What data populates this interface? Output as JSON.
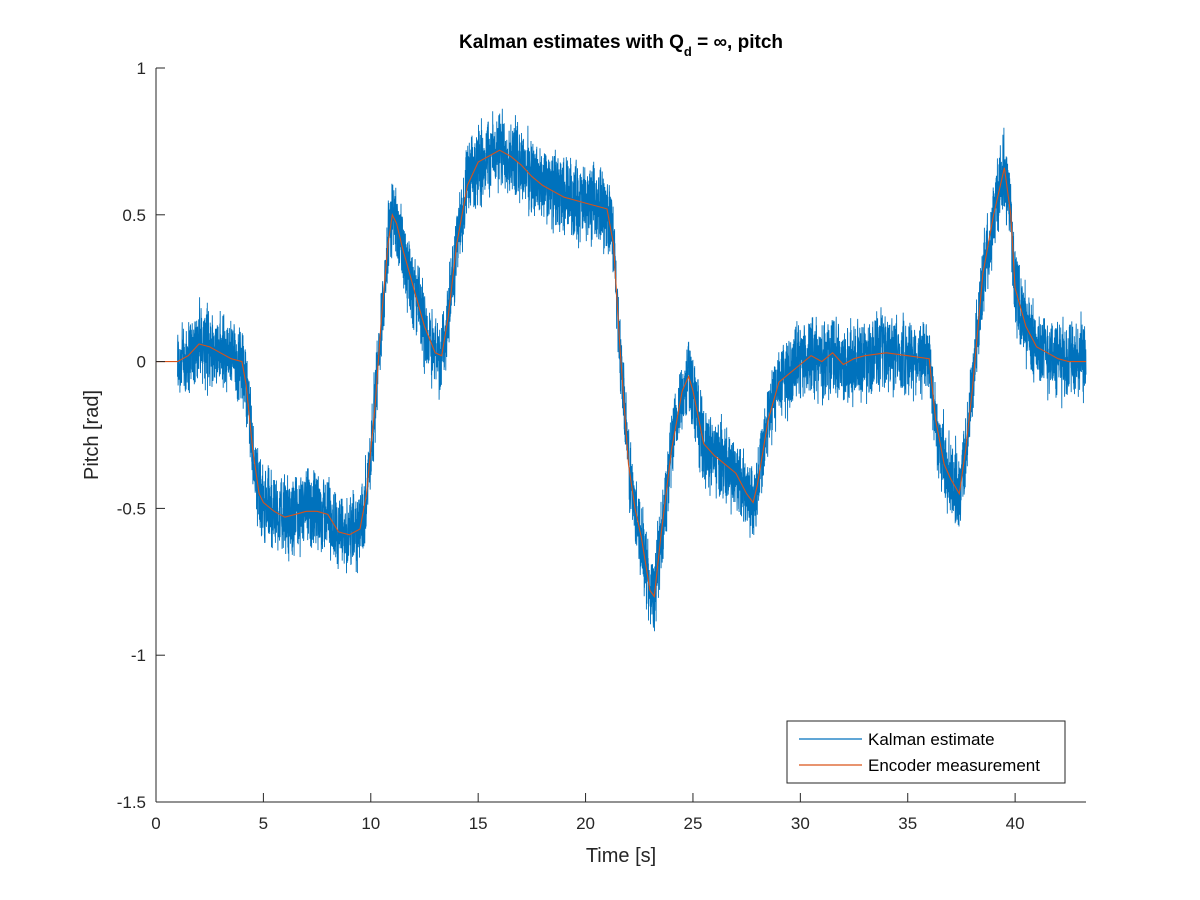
{
  "chart_data": {
    "type": "line",
    "title": {
      "prefix": "Kalman estimates with Q",
      "subscript": "d",
      "suffix": " = ∞, pitch"
    },
    "xlabel": "Time [s]",
    "ylabel": "Pitch [rad]",
    "xlim": [
      0,
      43.3
    ],
    "ylim": [
      -1.5,
      1
    ],
    "xticks": [
      0,
      5,
      10,
      15,
      20,
      25,
      30,
      35,
      40
    ],
    "xtick_labels": [
      "0",
      "5",
      "10",
      "15",
      "20",
      "25",
      "30",
      "35",
      "40"
    ],
    "yticks": [
      -1.5,
      -1,
      -0.5,
      0,
      0.5,
      1
    ],
    "ytick_labels": [
      "-1.5",
      "-1",
      "-0.5",
      "0",
      "0.5",
      "1"
    ],
    "grid": false,
    "legend_position": "bottom-right",
    "series": [
      {
        "name": "Kalman estimate",
        "color": "#0072BD",
        "noisy": true,
        "x_start": 1.0,
        "points": [
          [
            1.0,
            0.0
          ],
          [
            1.5,
            0.02
          ],
          [
            2.0,
            0.06
          ],
          [
            2.5,
            0.05
          ],
          [
            3.0,
            0.03
          ],
          [
            3.5,
            0.01
          ],
          [
            4.0,
            0.0
          ],
          [
            4.2,
            -0.08
          ],
          [
            4.5,
            -0.3
          ],
          [
            4.8,
            -0.45
          ],
          [
            5.0,
            -0.48
          ],
          [
            5.5,
            -0.51
          ],
          [
            6.0,
            -0.53
          ],
          [
            6.5,
            -0.52
          ],
          [
            7.0,
            -0.51
          ],
          [
            7.5,
            -0.51
          ],
          [
            8.0,
            -0.52
          ],
          [
            8.5,
            -0.58
          ],
          [
            9.0,
            -0.59
          ],
          [
            9.5,
            -0.57
          ],
          [
            9.8,
            -0.45
          ],
          [
            10.2,
            -0.15
          ],
          [
            10.5,
            0.15
          ],
          [
            10.8,
            0.4
          ],
          [
            11.0,
            0.5
          ],
          [
            11.2,
            0.47
          ],
          [
            11.5,
            0.38
          ],
          [
            12.0,
            0.25
          ],
          [
            12.5,
            0.12
          ],
          [
            13.0,
            0.03
          ],
          [
            13.3,
            0.02
          ],
          [
            13.6,
            0.15
          ],
          [
            14.0,
            0.4
          ],
          [
            14.5,
            0.6
          ],
          [
            15.0,
            0.68
          ],
          [
            15.5,
            0.7
          ],
          [
            16.0,
            0.72
          ],
          [
            16.5,
            0.7
          ],
          [
            17.0,
            0.67
          ],
          [
            17.5,
            0.63
          ],
          [
            18.0,
            0.6
          ],
          [
            18.5,
            0.58
          ],
          [
            19.0,
            0.56
          ],
          [
            19.5,
            0.55
          ],
          [
            20.0,
            0.54
          ],
          [
            20.5,
            0.53
          ],
          [
            21.0,
            0.52
          ],
          [
            21.3,
            0.4
          ],
          [
            21.6,
            0.05
          ],
          [
            22.0,
            -0.35
          ],
          [
            22.3,
            -0.5
          ],
          [
            22.6,
            -0.6
          ],
          [
            23.0,
            -0.78
          ],
          [
            23.2,
            -0.8
          ],
          [
            23.5,
            -0.6
          ],
          [
            24.0,
            -0.3
          ],
          [
            24.5,
            -0.1
          ],
          [
            24.8,
            -0.05
          ],
          [
            25.0,
            -0.1
          ],
          [
            25.5,
            -0.28
          ],
          [
            26.0,
            -0.32
          ],
          [
            26.5,
            -0.35
          ],
          [
            27.0,
            -0.38
          ],
          [
            27.5,
            -0.45
          ],
          [
            27.8,
            -0.48
          ],
          [
            28.0,
            -0.42
          ],
          [
            28.5,
            -0.2
          ],
          [
            29.0,
            -0.07
          ],
          [
            29.5,
            -0.04
          ],
          [
            30.0,
            -0.01
          ],
          [
            30.5,
            0.02
          ],
          [
            31.0,
            0.0
          ],
          [
            31.5,
            0.03
          ],
          [
            32.0,
            -0.01
          ],
          [
            32.5,
            0.01
          ],
          [
            33.0,
            0.02
          ],
          [
            34.0,
            0.03
          ],
          [
            35.0,
            0.02
          ],
          [
            36.0,
            0.01
          ],
          [
            36.3,
            -0.2
          ],
          [
            36.7,
            -0.35
          ],
          [
            37.0,
            -0.4
          ],
          [
            37.4,
            -0.45
          ],
          [
            37.7,
            -0.3
          ],
          [
            38.0,
            -0.1
          ],
          [
            38.5,
            0.3
          ],
          [
            39.0,
            0.5
          ],
          [
            39.5,
            0.66
          ],
          [
            39.8,
            0.5
          ],
          [
            40.0,
            0.25
          ],
          [
            40.5,
            0.12
          ],
          [
            41.0,
            0.05
          ],
          [
            41.5,
            0.03
          ],
          [
            42.0,
            0.01
          ],
          [
            42.5,
            0.0
          ],
          [
            43.3,
            0.0
          ]
        ]
      },
      {
        "name": "Encoder measurement",
        "color": "#D95319",
        "noisy": false,
        "points": [
          [
            0.0,
            0.0
          ],
          [
            1.0,
            0.0
          ],
          [
            1.5,
            0.02
          ],
          [
            2.0,
            0.06
          ],
          [
            2.5,
            0.05
          ],
          [
            3.0,
            0.03
          ],
          [
            3.5,
            0.01
          ],
          [
            4.0,
            0.0
          ],
          [
            4.2,
            -0.08
          ],
          [
            4.5,
            -0.3
          ],
          [
            4.8,
            -0.45
          ],
          [
            5.0,
            -0.48
          ],
          [
            5.5,
            -0.51
          ],
          [
            6.0,
            -0.53
          ],
          [
            6.5,
            -0.52
          ],
          [
            7.0,
            -0.51
          ],
          [
            7.5,
            -0.51
          ],
          [
            8.0,
            -0.52
          ],
          [
            8.5,
            -0.58
          ],
          [
            9.0,
            -0.59
          ],
          [
            9.5,
            -0.57
          ],
          [
            9.8,
            -0.45
          ],
          [
            10.2,
            -0.15
          ],
          [
            10.5,
            0.15
          ],
          [
            10.8,
            0.4
          ],
          [
            11.0,
            0.5
          ],
          [
            11.2,
            0.47
          ],
          [
            11.5,
            0.38
          ],
          [
            12.0,
            0.25
          ],
          [
            12.5,
            0.12
          ],
          [
            13.0,
            0.03
          ],
          [
            13.3,
            0.02
          ],
          [
            13.6,
            0.15
          ],
          [
            14.0,
            0.4
          ],
          [
            14.5,
            0.6
          ],
          [
            15.0,
            0.68
          ],
          [
            15.5,
            0.7
          ],
          [
            16.0,
            0.72
          ],
          [
            16.5,
            0.7
          ],
          [
            17.0,
            0.67
          ],
          [
            17.5,
            0.63
          ],
          [
            18.0,
            0.6
          ],
          [
            18.5,
            0.58
          ],
          [
            19.0,
            0.56
          ],
          [
            19.5,
            0.55
          ],
          [
            20.0,
            0.54
          ],
          [
            20.5,
            0.53
          ],
          [
            21.0,
            0.52
          ],
          [
            21.3,
            0.4
          ],
          [
            21.6,
            0.05
          ],
          [
            22.0,
            -0.35
          ],
          [
            22.3,
            -0.5
          ],
          [
            22.6,
            -0.6
          ],
          [
            23.0,
            -0.78
          ],
          [
            23.2,
            -0.8
          ],
          [
            23.5,
            -0.6
          ],
          [
            24.0,
            -0.3
          ],
          [
            24.5,
            -0.1
          ],
          [
            24.8,
            -0.05
          ],
          [
            25.0,
            -0.1
          ],
          [
            25.5,
            -0.28
          ],
          [
            26.0,
            -0.32
          ],
          [
            26.5,
            -0.35
          ],
          [
            27.0,
            -0.38
          ],
          [
            27.5,
            -0.45
          ],
          [
            27.8,
            -0.48
          ],
          [
            28.0,
            -0.42
          ],
          [
            28.5,
            -0.2
          ],
          [
            29.0,
            -0.07
          ],
          [
            29.5,
            -0.04
          ],
          [
            30.0,
            -0.01
          ],
          [
            30.5,
            0.02
          ],
          [
            31.0,
            0.0
          ],
          [
            31.5,
            0.03
          ],
          [
            32.0,
            -0.01
          ],
          [
            32.5,
            0.01
          ],
          [
            33.0,
            0.02
          ],
          [
            34.0,
            0.03
          ],
          [
            35.0,
            0.02
          ],
          [
            36.0,
            0.01
          ],
          [
            36.3,
            -0.2
          ],
          [
            36.7,
            -0.35
          ],
          [
            37.0,
            -0.4
          ],
          [
            37.4,
            -0.45
          ],
          [
            37.7,
            -0.3
          ],
          [
            38.0,
            -0.1
          ],
          [
            38.5,
            0.3
          ],
          [
            39.0,
            0.5
          ],
          [
            39.5,
            0.66
          ],
          [
            39.8,
            0.5
          ],
          [
            40.0,
            0.25
          ],
          [
            40.5,
            0.12
          ],
          [
            41.0,
            0.05
          ],
          [
            41.5,
            0.03
          ],
          [
            42.0,
            0.01
          ],
          [
            42.5,
            0.0
          ],
          [
            43.3,
            0.0
          ]
        ]
      }
    ]
  }
}
